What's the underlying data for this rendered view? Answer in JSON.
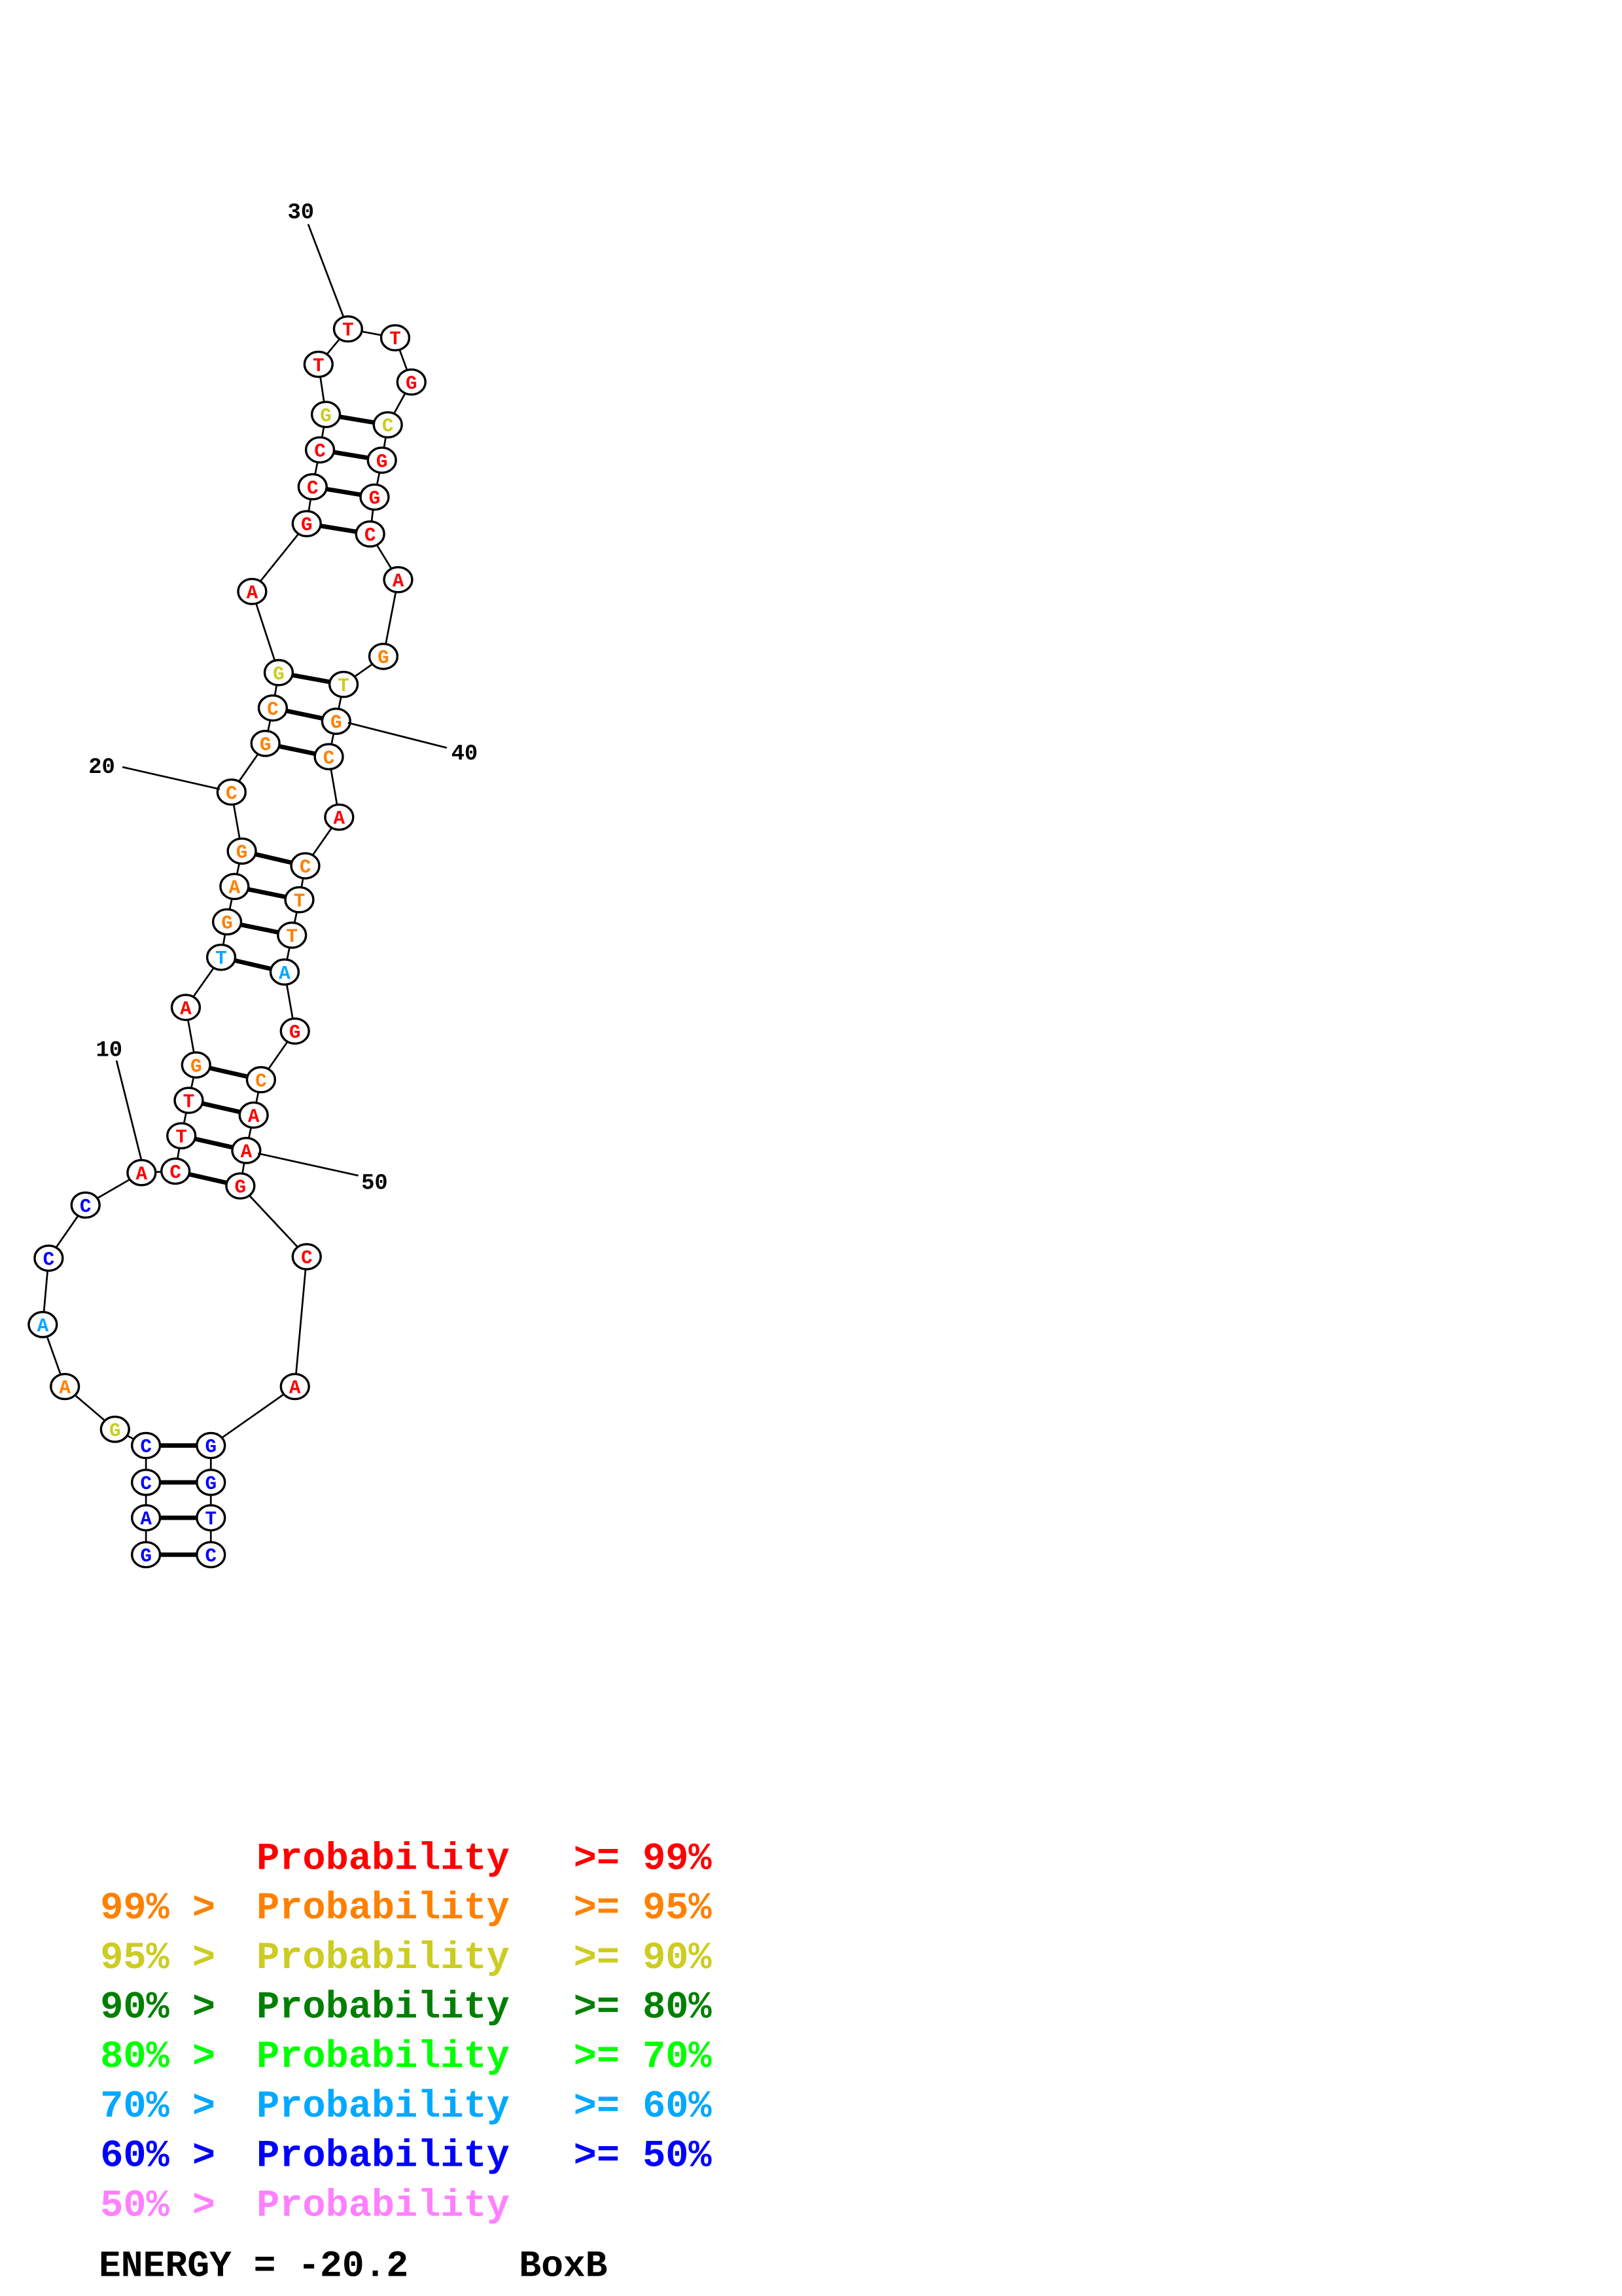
{
  "structure": {
    "sequence": "GACCGAACCACTTGATGAGCGCGAGCCGTTTGCGGCAGTGCACTTAGCAAGCAGGTC",
    "probability_class": [
      6,
      6,
      6,
      6,
      2,
      1,
      5,
      6,
      6,
      0,
      0,
      0,
      0,
      1,
      0,
      5,
      1,
      1,
      1,
      1,
      1,
      1,
      2,
      0,
      0,
      0,
      0,
      2,
      0,
      0,
      0,
      0,
      2,
      0,
      0,
      0,
      0,
      1,
      2,
      1,
      1,
      0,
      1,
      1,
      1,
      5,
      0,
      1,
      0,
      0,
      0,
      0,
      0,
      6,
      6,
      6,
      6
    ],
    "pairs": [
      [
        1,
        57
      ],
      [
        2,
        56
      ],
      [
        3,
        55
      ],
      [
        4,
        54
      ],
      [
        11,
        51
      ],
      [
        12,
        50
      ],
      [
        13,
        49
      ],
      [
        14,
        48
      ],
      [
        16,
        46
      ],
      [
        17,
        45
      ],
      [
        18,
        44
      ],
      [
        19,
        43
      ],
      [
        21,
        41
      ],
      [
        22,
        40
      ],
      [
        23,
        39
      ],
      [
        25,
        36
      ],
      [
        26,
        35
      ],
      [
        27,
        34
      ],
      [
        28,
        33
      ]
    ],
    "position_labels": [
      "10",
      "20",
      "30",
      "40",
      "50"
    ]
  },
  "legend": {
    "colors": [
      "#ff0000",
      "#ff8000",
      "#cccc22",
      "#008000",
      "#00ff00",
      "#00a8ff",
      "#0000ff",
      "#ff80ff"
    ],
    "rows": [
      {
        "prefix": "",
        "label": "Probability",
        "suffix": ">= 99%"
      },
      {
        "prefix": "99% >",
        "label": "Probability",
        "suffix": ">= 95%"
      },
      {
        "prefix": "95% >",
        "label": "Probability",
        "suffix": ">= 90%"
      },
      {
        "prefix": "90% >",
        "label": "Probability",
        "suffix": ">= 80%"
      },
      {
        "prefix": "80% >",
        "label": "Probability",
        "suffix": ">= 70%"
      },
      {
        "prefix": "70% >",
        "label": "Probability",
        "suffix": ">= 60%"
      },
      {
        "prefix": "60% >",
        "label": "Probability",
        "suffix": ">= 50%"
      },
      {
        "prefix": "50% >",
        "label": "Probability",
        "suffix": ""
      }
    ]
  },
  "footer": {
    "energy_label": "ENERGY = -20.2",
    "name": "BoxB"
  }
}
